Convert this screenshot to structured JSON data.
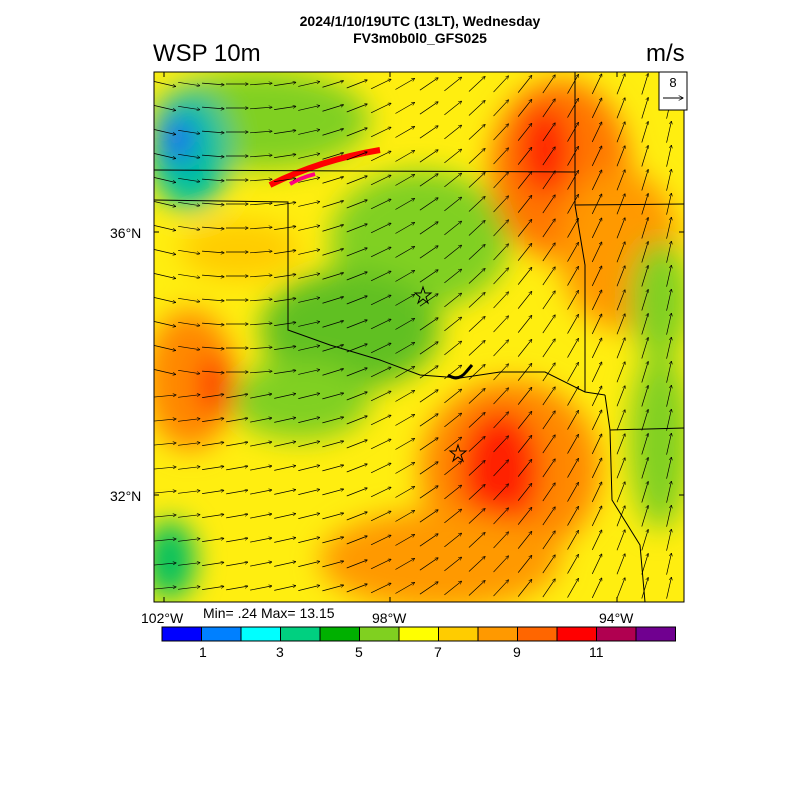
{
  "header": {
    "time_line": "2024/1/10/19UTC (13LT), Wednesday",
    "run_line": "FV3m0b0l0_GFS025",
    "variable": "WSP 10m",
    "units": "m/s"
  },
  "reference_vector": {
    "label": "8"
  },
  "stats": {
    "text": "Min= .24 Max= 13.15"
  },
  "axes": {
    "lat_labels": [
      "36°N",
      "32°N"
    ],
    "lon_labels": [
      "102°W",
      "98°W",
      "94°W"
    ]
  },
  "colorbar": {
    "colors": [
      "#0000ff",
      "#0080ff",
      "#00ffff",
      "#00d080",
      "#00b000",
      "#80d020",
      "#ffff00",
      "#ffcc00",
      "#ff9900",
      "#ff6600",
      "#ff0000",
      "#b00050",
      "#700090"
    ],
    "labels": [
      "1",
      "3",
      "5",
      "7",
      "9",
      "11"
    ]
  },
  "map": {
    "legend_colors": {
      "state_border": "#000000",
      "vector": "#000000"
    }
  }
}
